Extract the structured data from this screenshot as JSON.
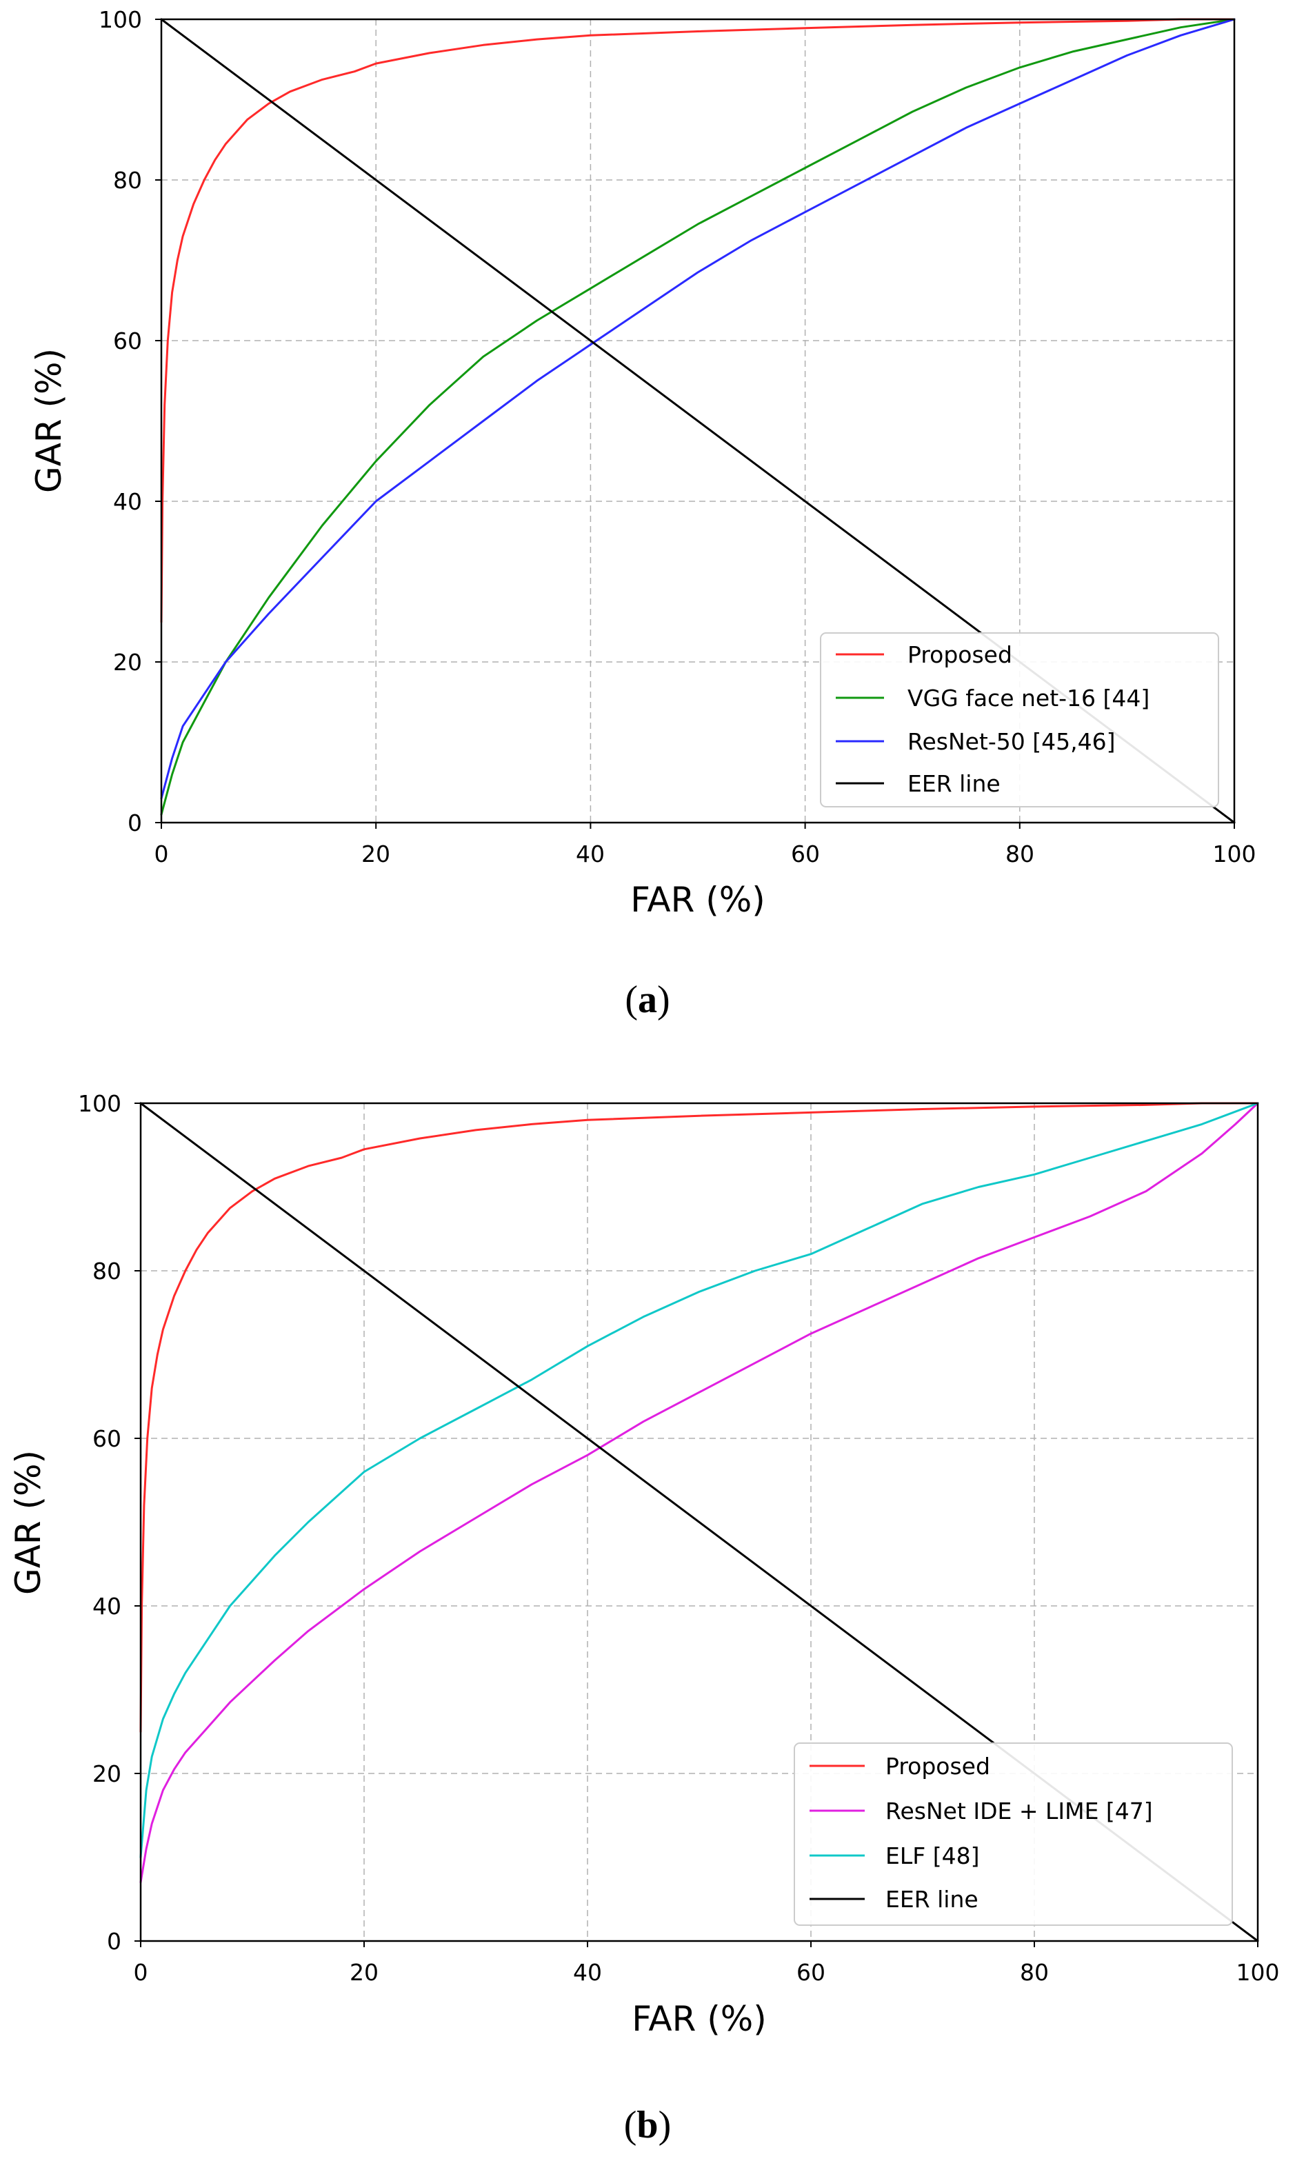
{
  "charts": [
    {
      "caption": {
        "open": "(",
        "letter": "a",
        "close": ")"
      },
      "type": "line",
      "xlabel": "FAR (%)",
      "ylabel": "GAR (%)",
      "xlim": [
        0,
        100
      ],
      "ylim": [
        0,
        100
      ],
      "xticks": [
        "0",
        "20",
        "40",
        "60",
        "80",
        "100"
      ],
      "yticks": [
        "0",
        "20",
        "40",
        "60",
        "80",
        "100"
      ],
      "grid": true,
      "legend_position": "bottom-right",
      "series": [
        {
          "name": "Proposed",
          "color": "#ff2a2a",
          "x": [
            0,
            0.1,
            0.3,
            0.6,
            1,
            1.5,
            2,
            3,
            4,
            5,
            6,
            8,
            10,
            12,
            15,
            18,
            20,
            25,
            30,
            35,
            40,
            50,
            60,
            70,
            80,
            90,
            95,
            100
          ],
          "y": [
            25,
            40,
            52,
            60,
            66,
            70,
            73,
            77,
            80,
            82.5,
            84.5,
            87.5,
            89.5,
            91,
            92.5,
            93.5,
            94.5,
            95.8,
            96.8,
            97.5,
            98,
            98.5,
            98.9,
            99.3,
            99.6,
            99.8,
            100,
            100
          ]
        },
        {
          "name": "VGG face net-16 [44]",
          "color": "#119911",
          "x": [
            0,
            1,
            2,
            4,
            6,
            8,
            10,
            15,
            20,
            25,
            30,
            35,
            40,
            45,
            50,
            55,
            60,
            65,
            70,
            75,
            80,
            85,
            90,
            95,
            100
          ],
          "y": [
            1,
            6,
            10,
            15,
            20,
            24,
            28,
            37,
            45,
            52,
            58,
            62.5,
            66.5,
            70.5,
            74.5,
            78,
            81.5,
            85,
            88.5,
            91.5,
            94,
            96,
            97.5,
            99,
            100
          ]
        },
        {
          "name": "ResNet-50 [45,46]",
          "color": "#2a2aff",
          "x": [
            0,
            1,
            2,
            4,
            6,
            8,
            10,
            15,
            20,
            25,
            30,
            35,
            40,
            45,
            50,
            55,
            60,
            65,
            70,
            75,
            80,
            85,
            90,
            95,
            100
          ],
          "y": [
            3,
            8,
            12,
            16,
            20,
            23,
            26,
            33,
            40,
            45,
            50,
            55,
            59.5,
            64,
            68.5,
            72.5,
            76,
            79.5,
            83,
            86.5,
            89.5,
            92.5,
            95.5,
            98,
            100
          ]
        },
        {
          "name": "EER line",
          "color": "#000000",
          "x": [
            0,
            100
          ],
          "y": [
            100,
            0
          ]
        }
      ]
    },
    {
      "caption": {
        "open": "(",
        "letter": "b",
        "close": ")"
      },
      "type": "line",
      "xlabel": "FAR (%)",
      "ylabel": "GAR (%)",
      "xlim": [
        0,
        100
      ],
      "ylim": [
        0,
        100
      ],
      "xticks": [
        "0",
        "20",
        "40",
        "60",
        "80",
        "100"
      ],
      "yticks": [
        "0",
        "20",
        "40",
        "60",
        "80",
        "100"
      ],
      "grid": true,
      "legend_position": "bottom-right",
      "series": [
        {
          "name": "Proposed",
          "color": "#ff2a2a",
          "x": [
            0,
            0.1,
            0.3,
            0.6,
            1,
            1.5,
            2,
            3,
            4,
            5,
            6,
            8,
            10,
            12,
            15,
            18,
            20,
            25,
            30,
            35,
            40,
            50,
            60,
            70,
            80,
            90,
            95,
            100
          ],
          "y": [
            25,
            40,
            52,
            60,
            66,
            70,
            73,
            77,
            80,
            82.5,
            84.5,
            87.5,
            89.5,
            91,
            92.5,
            93.5,
            94.5,
            95.8,
            96.8,
            97.5,
            98,
            98.5,
            98.9,
            99.3,
            99.6,
            99.8,
            100,
            100
          ]
        },
        {
          "name": "ResNet IDE + LIME [47]",
          "color": "#e020e0",
          "x": [
            0,
            0.5,
            1,
            2,
            3,
            4,
            6,
            8,
            10,
            12,
            15,
            20,
            25,
            30,
            35,
            40,
            45,
            50,
            55,
            60,
            65,
            70,
            75,
            80,
            85,
            90,
            95,
            98,
            100
          ],
          "y": [
            7,
            11,
            14,
            18,
            20.5,
            22.5,
            25.5,
            28.5,
            31,
            33.5,
            37,
            42,
            46.5,
            50.5,
            54.5,
            58,
            62,
            65.5,
            69,
            72.5,
            75.5,
            78.5,
            81.5,
            84,
            86.5,
            89.5,
            94,
            97.5,
            100
          ]
        },
        {
          "name": "ELF [48]",
          "color": "#10c8c8",
          "x": [
            0,
            0.5,
            1,
            2,
            3,
            4,
            6,
            8,
            10,
            12,
            15,
            20,
            25,
            30,
            35,
            40,
            45,
            50,
            55,
            60,
            65,
            70,
            75,
            80,
            85,
            90,
            95,
            100
          ],
          "y": [
            10,
            18,
            22,
            26.5,
            29.5,
            32,
            36,
            40,
            43,
            46,
            50,
            56,
            60,
            63.5,
            67,
            71,
            74.5,
            77.5,
            80,
            82,
            85,
            88,
            90,
            91.5,
            93.5,
            95.5,
            97.5,
            100
          ]
        },
        {
          "name": "EER line",
          "color": "#000000",
          "x": [
            0,
            100
          ],
          "y": [
            100,
            0
          ]
        }
      ]
    }
  ]
}
